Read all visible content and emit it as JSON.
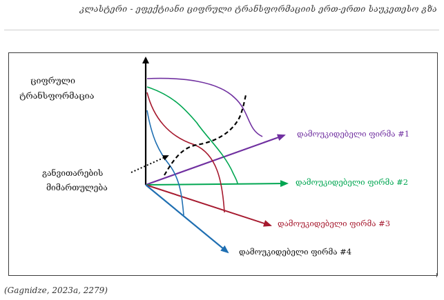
{
  "header": {
    "title": "კლასტერი - ეფექტიანი ციფრული ტრანსფორმაციის ერთ-ერთი საუკეთესო გზა"
  },
  "diagram": {
    "y_axis_label_line1": "ციფრული",
    "y_axis_label_line2": "ტრანსფორმაცია",
    "annotation_line1": "განვითარების",
    "annotation_line2": "მიმართულება",
    "firms": [
      {
        "label": "დამოუკიდებელი ფირმა #1",
        "color": "#7030a0"
      },
      {
        "label": "დამოუკიდებელი ფირმა #2",
        "color": "#00a651"
      },
      {
        "label": "დამოუკიდებელი ფირმა #3",
        "color": "#a6192e"
      },
      {
        "label": "დამოუკიდებელი ფირმა #4",
        "color": "#1f6fb2"
      }
    ],
    "axis_color": "#000000"
  },
  "citation": "(Gagnidze, 2023a, 2279)"
}
